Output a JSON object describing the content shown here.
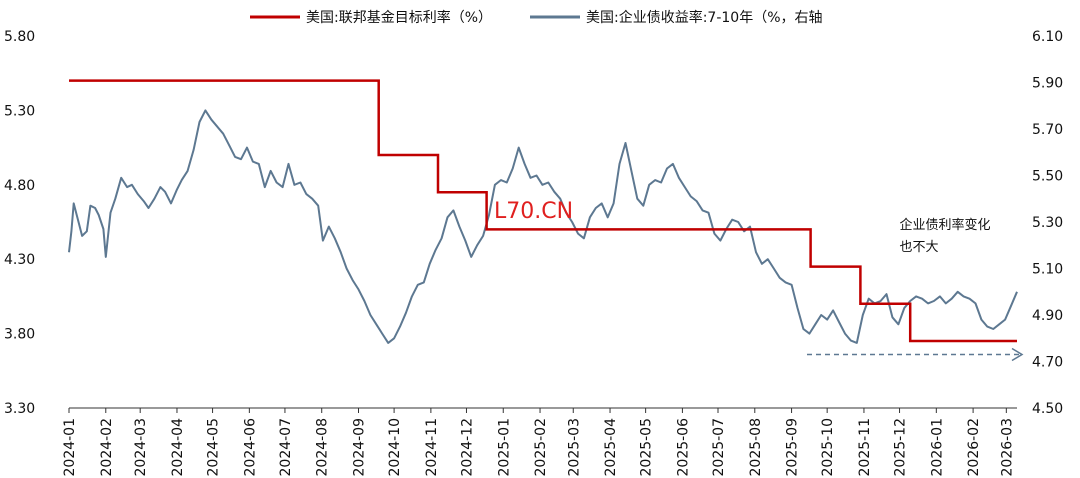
{
  "chart_data": {
    "type": "line",
    "legend_placement": "top",
    "grid": false,
    "watermark": "L70.CN",
    "colors": {
      "fed_rate": "#c00000",
      "corp_yield": "#5d7891",
      "arrow": "#5d7891",
      "axis": "#333333"
    },
    "left_axis": {
      "ylim": [
        3.3,
        5.8
      ],
      "ticks": [
        "5.80",
        "5.30",
        "4.80",
        "4.30",
        "3.80",
        "3.30"
      ]
    },
    "right_axis": {
      "ylim": [
        4.5,
        6.1
      ],
      "ticks": [
        "6.10",
        "5.90",
        "5.70",
        "5.50",
        "5.30",
        "5.10",
        "4.90",
        "4.70",
        "4.50"
      ]
    },
    "x_axis": {
      "start": "2024-01-01",
      "end": "2026-03-10",
      "ticks": [
        "2024-01",
        "2024-02",
        "2024-03",
        "2024-04",
        "2024-05",
        "2024-06",
        "2024-07",
        "2024-08",
        "2024-09",
        "2024-10",
        "2024-11",
        "2024-12",
        "2025-01",
        "2025-02",
        "2025-03",
        "2025-04",
        "2025-05",
        "2025-06",
        "2025-07",
        "2025-08",
        "2025-09",
        "2025-10",
        "2025-11",
        "2025-12",
        "2026-01",
        "2026-02",
        "2026-03"
      ]
    },
    "series": [
      {
        "name": "美国:联邦基金目标利率（%）",
        "axis": "left",
        "style": "step",
        "points": [
          [
            "2024-01-01",
            5.5
          ],
          [
            "2024-09-18",
            5.0
          ],
          [
            "2024-11-07",
            4.75
          ],
          [
            "2024-12-18",
            4.5
          ],
          [
            "2025-09-17",
            4.25
          ],
          [
            "2025-10-29",
            4.0
          ],
          [
            "2025-12-10",
            3.75
          ],
          [
            "2026-03-10",
            3.75
          ]
        ]
      },
      {
        "name": "美国:企业债收益率:7-10年（%，右轴",
        "axis": "right",
        "style": "line",
        "points": [
          [
            "2024-01-01",
            5.17
          ],
          [
            "2024-01-03",
            5.26
          ],
          [
            "2024-01-05",
            5.38
          ],
          [
            "2024-01-08",
            5.32
          ],
          [
            "2024-01-12",
            5.24
          ],
          [
            "2024-01-16",
            5.26
          ],
          [
            "2024-01-19",
            5.37
          ],
          [
            "2024-01-23",
            5.36
          ],
          [
            "2024-01-26",
            5.33
          ],
          [
            "2024-01-30",
            5.27
          ],
          [
            "2024-02-01",
            5.15
          ],
          [
            "2024-02-05",
            5.34
          ],
          [
            "2024-02-09",
            5.4
          ],
          [
            "2024-02-14",
            5.49
          ],
          [
            "2024-02-19",
            5.45
          ],
          [
            "2024-02-23",
            5.46
          ],
          [
            "2024-02-28",
            5.42
          ],
          [
            "2024-03-04",
            5.39
          ],
          [
            "2024-03-08",
            5.36
          ],
          [
            "2024-03-13",
            5.4
          ],
          [
            "2024-03-18",
            5.45
          ],
          [
            "2024-03-22",
            5.43
          ],
          [
            "2024-03-27",
            5.38
          ],
          [
            "2024-04-01",
            5.44
          ],
          [
            "2024-04-05",
            5.48
          ],
          [
            "2024-04-10",
            5.52
          ],
          [
            "2024-04-15",
            5.61
          ],
          [
            "2024-04-20",
            5.73
          ],
          [
            "2024-04-25",
            5.78
          ],
          [
            "2024-04-30",
            5.74
          ],
          [
            "2024-05-05",
            5.71
          ],
          [
            "2024-05-10",
            5.68
          ],
          [
            "2024-05-15",
            5.63
          ],
          [
            "2024-05-20",
            5.58
          ],
          [
            "2024-05-25",
            5.57
          ],
          [
            "2024-05-30",
            5.62
          ],
          [
            "2024-06-04",
            5.56
          ],
          [
            "2024-06-09",
            5.55
          ],
          [
            "2024-06-14",
            5.45
          ],
          [
            "2024-06-19",
            5.52
          ],
          [
            "2024-06-24",
            5.47
          ],
          [
            "2024-06-29",
            5.45
          ],
          [
            "2024-07-04",
            5.55
          ],
          [
            "2024-07-09",
            5.46
          ],
          [
            "2024-07-14",
            5.47
          ],
          [
            "2024-07-19",
            5.42
          ],
          [
            "2024-07-24",
            5.4
          ],
          [
            "2024-07-29",
            5.37
          ],
          [
            "2024-08-02",
            5.22
          ],
          [
            "2024-08-07",
            5.28
          ],
          [
            "2024-08-12",
            5.23
          ],
          [
            "2024-08-17",
            5.17
          ],
          [
            "2024-08-22",
            5.1
          ],
          [
            "2024-08-27",
            5.05
          ],
          [
            "2024-09-01",
            5.01
          ],
          [
            "2024-09-06",
            4.96
          ],
          [
            "2024-09-11",
            4.9
          ],
          [
            "2024-09-16",
            4.86
          ],
          [
            "2024-09-21",
            4.82
          ],
          [
            "2024-09-26",
            4.78
          ],
          [
            "2024-10-01",
            4.8
          ],
          [
            "2024-10-06",
            4.85
          ],
          [
            "2024-10-11",
            4.91
          ],
          [
            "2024-10-16",
            4.98
          ],
          [
            "2024-10-21",
            5.03
          ],
          [
            "2024-10-26",
            5.04
          ],
          [
            "2024-10-31",
            5.12
          ],
          [
            "2024-11-05",
            5.18
          ],
          [
            "2024-11-10",
            5.23
          ],
          [
            "2024-11-15",
            5.32
          ],
          [
            "2024-11-20",
            5.35
          ],
          [
            "2024-11-25",
            5.28
          ],
          [
            "2024-11-30",
            5.22
          ],
          [
            "2024-12-05",
            5.15
          ],
          [
            "2024-12-10",
            5.2
          ],
          [
            "2024-12-15",
            5.24
          ],
          [
            "2024-12-20",
            5.33
          ],
          [
            "2024-12-25",
            5.46
          ],
          [
            "2024-12-30",
            5.48
          ],
          [
            "2025-01-04",
            5.47
          ],
          [
            "2025-01-09",
            5.53
          ],
          [
            "2025-01-14",
            5.62
          ],
          [
            "2025-01-19",
            5.55
          ],
          [
            "2025-01-24",
            5.49
          ],
          [
            "2025-01-29",
            5.5
          ],
          [
            "2025-02-03",
            5.46
          ],
          [
            "2025-02-08",
            5.47
          ],
          [
            "2025-02-13",
            5.43
          ],
          [
            "2025-02-18",
            5.4
          ],
          [
            "2025-02-23",
            5.34
          ],
          [
            "2025-02-28",
            5.3
          ],
          [
            "2025-03-05",
            5.25
          ],
          [
            "2025-03-10",
            5.23
          ],
          [
            "2025-03-15",
            5.32
          ],
          [
            "2025-03-20",
            5.36
          ],
          [
            "2025-03-25",
            5.38
          ],
          [
            "2025-03-30",
            5.32
          ],
          [
            "2025-04-04",
            5.38
          ],
          [
            "2025-04-09",
            5.55
          ],
          [
            "2025-04-14",
            5.64
          ],
          [
            "2025-04-19",
            5.52
          ],
          [
            "2025-04-24",
            5.4
          ],
          [
            "2025-04-29",
            5.37
          ],
          [
            "2025-05-04",
            5.46
          ],
          [
            "2025-05-09",
            5.48
          ],
          [
            "2025-05-14",
            5.47
          ],
          [
            "2025-05-19",
            5.53
          ],
          [
            "2025-05-24",
            5.55
          ],
          [
            "2025-05-29",
            5.49
          ],
          [
            "2025-06-03",
            5.45
          ],
          [
            "2025-06-08",
            5.41
          ],
          [
            "2025-06-13",
            5.39
          ],
          [
            "2025-06-18",
            5.35
          ],
          [
            "2025-06-23",
            5.34
          ],
          [
            "2025-06-28",
            5.25
          ],
          [
            "2025-07-03",
            5.22
          ],
          [
            "2025-07-08",
            5.27
          ],
          [
            "2025-07-13",
            5.31
          ],
          [
            "2025-07-18",
            5.3
          ],
          [
            "2025-07-23",
            5.26
          ],
          [
            "2025-07-28",
            5.28
          ],
          [
            "2025-08-02",
            5.17
          ],
          [
            "2025-08-07",
            5.12
          ],
          [
            "2025-08-12",
            5.14
          ],
          [
            "2025-08-17",
            5.1
          ],
          [
            "2025-08-22",
            5.06
          ],
          [
            "2025-08-27",
            5.04
          ],
          [
            "2025-09-01",
            5.03
          ],
          [
            "2025-09-06",
            4.93
          ],
          [
            "2025-09-11",
            4.84
          ],
          [
            "2025-09-16",
            4.82
          ],
          [
            "2025-09-21",
            4.86
          ],
          [
            "2025-09-26",
            4.9
          ],
          [
            "2025-10-01",
            4.88
          ],
          [
            "2025-10-06",
            4.92
          ],
          [
            "2025-10-11",
            4.87
          ],
          [
            "2025-10-16",
            4.82
          ],
          [
            "2025-10-21",
            4.79
          ],
          [
            "2025-10-26",
            4.78
          ],
          [
            "2025-10-31",
            4.9
          ],
          [
            "2025-11-05",
            4.97
          ],
          [
            "2025-11-10",
            4.95
          ],
          [
            "2025-11-15",
            4.96
          ],
          [
            "2025-11-20",
            4.99
          ],
          [
            "2025-11-25",
            4.89
          ],
          [
            "2025-11-30",
            4.86
          ],
          [
            "2025-12-05",
            4.93
          ],
          [
            "2025-12-10",
            4.96
          ],
          [
            "2025-12-15",
            4.98
          ],
          [
            "2025-12-20",
            4.97
          ],
          [
            "2025-12-25",
            4.95
          ],
          [
            "2025-12-30",
            4.96
          ],
          [
            "2026-01-04",
            4.98
          ],
          [
            "2026-01-09",
            4.95
          ],
          [
            "2026-01-14",
            4.97
          ],
          [
            "2026-01-19",
            5.0
          ],
          [
            "2026-01-24",
            4.98
          ],
          [
            "2026-01-29",
            4.97
          ],
          [
            "2026-02-03",
            4.95
          ],
          [
            "2026-02-08",
            4.88
          ],
          [
            "2026-02-13",
            4.85
          ],
          [
            "2026-02-18",
            4.84
          ],
          [
            "2026-02-23",
            4.86
          ],
          [
            "2026-02-28",
            4.88
          ],
          [
            "2026-03-05",
            4.94
          ],
          [
            "2026-03-10",
            5.0
          ]
        ]
      }
    ],
    "annotations": [
      {
        "text_lines": [
          "企业债利率变化",
          "也不大"
        ],
        "x": "2025-12-01",
        "y_right": 5.27
      }
    ],
    "arrow": {
      "from": "2025-09-14",
      "to": "2026-03-15",
      "y_right": 4.73,
      "dashed": true
    }
  }
}
